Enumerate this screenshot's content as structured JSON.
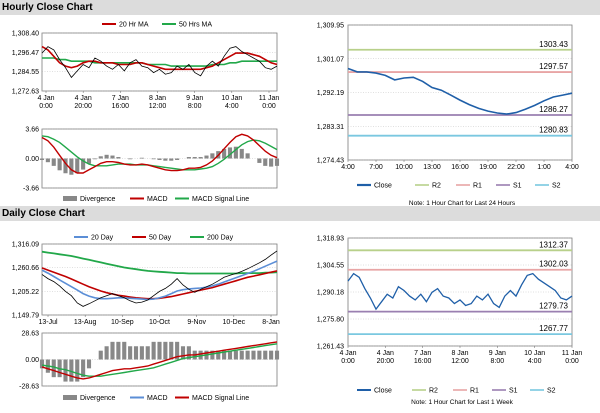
{
  "hourly": {
    "title": "Hourly Close Chart",
    "price_chart": {
      "type": "line",
      "legend": [
        "20 Hr MA",
        "50 Hrs MA"
      ],
      "y_ticks": [
        "1,308.40",
        "1,296.47",
        "1,284.55",
        "1,272.63"
      ],
      "ylim": [
        1272.63,
        1308.4
      ],
      "x_ticks": [
        [
          "4 Jan",
          "0:00"
        ],
        [
          "4 Jan",
          "20:00"
        ],
        [
          "7 Jan",
          "16:00"
        ],
        [
          "8 Jan",
          "12:00"
        ],
        [
          "9 Jan",
          "8:00"
        ],
        [
          "10 Jan",
          "4:00"
        ],
        [
          "11 Jan",
          "0:00"
        ]
      ],
      "series": [
        {
          "name": "Price",
          "values": [
            1296,
            1300,
            1298,
            1292,
            1287,
            1281,
            1285,
            1289,
            1287,
            1293,
            1291,
            1288,
            1286,
            1289,
            1285,
            1290,
            1292,
            1288,
            1287,
            1284,
            1286,
            1283,
            1284,
            1288,
            1286,
            1289,
            1284,
            1282,
            1288,
            1291,
            1288,
            1294,
            1299,
            1300,
            1297,
            1295,
            1293,
            1291,
            1287,
            1286,
            1288
          ]
        },
        {
          "name": "20 Hr MA",
          "values": [
            1300,
            1298,
            1294,
            1290,
            1288,
            1287,
            1288,
            1290,
            1291,
            1291,
            1290,
            1290,
            1290,
            1289,
            1289,
            1289,
            1290,
            1290,
            1289,
            1288,
            1287,
            1286,
            1286,
            1286,
            1286,
            1286,
            1286,
            1286,
            1287,
            1288,
            1290,
            1292,
            1294,
            1296,
            1296,
            1296,
            1295,
            1294,
            1292,
            1290,
            1289
          ]
        },
        {
          "name": "50 Hrs MA",
          "values": [
            1293,
            1293,
            1293,
            1292,
            1292,
            1291,
            1291,
            1291,
            1291,
            1290,
            1290,
            1290,
            1290,
            1290,
            1290,
            1290,
            1290,
            1290,
            1289,
            1289,
            1289,
            1289,
            1288,
            1288,
            1288,
            1288,
            1288,
            1288,
            1288,
            1289,
            1289,
            1289,
            1290,
            1290,
            1291,
            1291,
            1291,
            1291,
            1291,
            1291,
            1291
          ]
        }
      ]
    },
    "macd_chart": {
      "type": "line",
      "y_ticks": [
        "3.66",
        "0.00",
        "-3.66"
      ],
      "ylim": [
        -3.66,
        3.66
      ],
      "legend": [
        "Divergence",
        "MACD",
        "MACD Signal Line"
      ],
      "series": [
        {
          "name": "MACD",
          "values": [
            2.6,
            2.2,
            1.4,
            0.4,
            -0.6,
            -1.4,
            -1.8,
            -1.8,
            -1.4,
            -1.0,
            -0.6,
            -0.4,
            -0.4,
            -0.5,
            -0.7,
            -0.8,
            -0.8,
            -0.7,
            -0.8,
            -1.0,
            -1.2,
            -1.4,
            -1.5,
            -1.5,
            -1.4,
            -1.2,
            -1.2,
            -1.1,
            -0.8,
            -0.3,
            0.4,
            1.2,
            2.0,
            2.7,
            3.0,
            2.8,
            2.3,
            1.6,
            0.9,
            0.4,
            0.1
          ]
        },
        {
          "name": "MACD Signal Line",
          "values": [
            2.8,
            2.7,
            2.4,
            2.0,
            1.4,
            0.8,
            0.2,
            -0.3,
            -0.7,
            -0.9,
            -0.9,
            -0.9,
            -0.8,
            -0.7,
            -0.7,
            -0.7,
            -0.8,
            -0.8,
            -0.8,
            -0.9,
            -1.0,
            -1.1,
            -1.2,
            -1.3,
            -1.4,
            -1.4,
            -1.4,
            -1.3,
            -1.2,
            -1.0,
            -0.6,
            -0.1,
            0.5,
            1.1,
            1.7,
            2.1,
            2.3,
            2.2,
            1.9,
            1.5,
            1.1
          ]
        }
      ]
    },
    "intraday": {
      "type": "line",
      "y_ticks": [
        "1,309.95",
        "1,301.07",
        "1,292.19",
        "1,283.31",
        "1,274.43"
      ],
      "ylim": [
        1274.43,
        1309.95
      ],
      "x_ticks": [
        "4:00",
        "7:00",
        "10:00",
        "13:00",
        "16:00",
        "19:00",
        "22:00",
        "1:00",
        "4:00"
      ],
      "close": [
        1298.5,
        1297.6,
        1297.6,
        1297.3,
        1296.7,
        1295.5,
        1296.0,
        1296.2,
        1295.1,
        1293.5,
        1292.8,
        1291.5,
        1290.2,
        1289.0,
        1288.0,
        1287.3,
        1286.8,
        1286.5,
        1286.9,
        1287.8,
        1288.8,
        1290.0,
        1291.0,
        1291.5,
        1292.0
      ],
      "levels": [
        {
          "name": "R2",
          "value": 1303.43,
          "label": "1303.43",
          "color": "#b8d08a"
        },
        {
          "name": "R1",
          "value": 1297.57,
          "label": "1297.57",
          "color": "#e8a5a5"
        },
        {
          "name": "S1",
          "value": 1286.27,
          "label": "1286.27",
          "color": "#9a7fb0"
        },
        {
          "name": "S2",
          "value": 1280.83,
          "label": "1280.83",
          "color": "#7ac8e0"
        }
      ],
      "legend": [
        "Close",
        "R2",
        "R1",
        "S1",
        "S2"
      ],
      "note": "Note: 1 Hour Chart for Last 24 Hours"
    }
  },
  "daily": {
    "title": "Daily Close Chart",
    "price_chart": {
      "type": "line",
      "legend": [
        "20 Day",
        "50 Day",
        "200 Day"
      ],
      "y_ticks": [
        "1,316.09",
        "1,260.66",
        "1,205.22",
        "1,149.79"
      ],
      "ylim": [
        1149.79,
        1316.09
      ],
      "x_ticks": [
        "13-Jul",
        "13-Aug",
        "10-Sep",
        "10-Oct",
        "9-Nov",
        "10-Dec",
        "8-Jan"
      ],
      "series": [
        {
          "name": "Price",
          "values": [
            1245,
            1235,
            1228,
            1218,
            1205,
            1195,
            1178,
            1170,
            1176,
            1183,
            1190,
            1195,
            1200,
            1195,
            1190,
            1183,
            1178,
            1180,
            1185,
            1195,
            1205,
            1212,
            1222,
            1235,
            1220,
            1210,
            1203,
            1210,
            1216,
            1222,
            1230,
            1238,
            1243,
            1247,
            1252,
            1258,
            1265,
            1272,
            1280,
            1290,
            1300
          ]
        },
        {
          "name": "20 Day",
          "values": [
            1255,
            1248,
            1240,
            1232,
            1224,
            1216,
            1208,
            1200,
            1194,
            1190,
            1188,
            1188,
            1189,
            1190,
            1190,
            1189,
            1188,
            1187,
            1186,
            1187,
            1190,
            1194,
            1200,
            1206,
            1209,
            1211,
            1212,
            1213,
            1215,
            1218,
            1222,
            1227,
            1232,
            1237,
            1242,
            1247,
            1252,
            1258,
            1264,
            1270,
            1276
          ]
        },
        {
          "name": "50 Day",
          "values": [
            1260,
            1255,
            1250,
            1245,
            1240,
            1234,
            1228,
            1222,
            1216,
            1211,
            1206,
            1202,
            1199,
            1196,
            1194,
            1192,
            1190,
            1189,
            1188,
            1188,
            1189,
            1191,
            1193,
            1196,
            1199,
            1202,
            1205,
            1208,
            1211,
            1214,
            1218,
            1222,
            1226,
            1230,
            1234,
            1238,
            1241,
            1244,
            1247,
            1250,
            1253
          ]
        },
        {
          "name": "200 Day",
          "values": [
            1298,
            1296,
            1294,
            1292,
            1290,
            1288,
            1285,
            1282,
            1279,
            1276,
            1273,
            1270,
            1267,
            1264,
            1261,
            1259,
            1257,
            1255,
            1253,
            1252,
            1251,
            1250,
            1249,
            1248,
            1248,
            1247,
            1247,
            1247,
            1247,
            1247,
            1247,
            1247,
            1247,
            1247,
            1248,
            1248,
            1248,
            1248,
            1249,
            1249,
            1250
          ]
        }
      ]
    },
    "macd_chart": {
      "type": "line",
      "y_ticks": [
        "28.63",
        "0.00",
        "-28.63"
      ],
      "ylim": [
        -28.63,
        28.63
      ],
      "legend": [
        "Divergence",
        "MACD",
        "MACD Signal Line"
      ],
      "series": [
        {
          "name": "MACD",
          "values": [
            -8,
            -10,
            -12,
            -14,
            -16,
            -18,
            -20,
            -21,
            -20,
            -18,
            -16,
            -14,
            -12,
            -11,
            -10,
            -10,
            -9,
            -8,
            -7,
            -5,
            -3,
            -1,
            1,
            3,
            4,
            5,
            5,
            6,
            7,
            8,
            9,
            10,
            11,
            12,
            13,
            14,
            15,
            16,
            17,
            18,
            19
          ]
        },
        {
          "name": "MACD Signal Line",
          "values": [
            -6,
            -7,
            -8,
            -10,
            -11,
            -13,
            -15,
            -17,
            -18,
            -18,
            -18,
            -17,
            -16,
            -15,
            -14,
            -13,
            -12,
            -11,
            -10,
            -9,
            -7,
            -5,
            -3,
            -1,
            1,
            2,
            3,
            4,
            5,
            6,
            7,
            8,
            9,
            10,
            11,
            12,
            13,
            14,
            15,
            16,
            17
          ]
        }
      ]
    },
    "weekly": {
      "type": "line",
      "y_ticks": [
        "1,318.93",
        "1,304.55",
        "1,290.18",
        "1,275.80",
        "1,261.43"
      ],
      "ylim": [
        1261.43,
        1318.93
      ],
      "x_ticks": [
        [
          "4 Jan",
          "0:00"
        ],
        [
          "4 Jan",
          "20:00"
        ],
        [
          "7 Jan",
          "16:00"
        ],
        [
          "8 Jan",
          "12:00"
        ],
        [
          "9 Jan",
          "8:00"
        ],
        [
          "10 Jan",
          "4:00"
        ],
        [
          "11 Jan",
          "0:00"
        ]
      ],
      "close": [
        1296,
        1300,
        1298,
        1292,
        1287,
        1281,
        1285,
        1289,
        1287,
        1293,
        1291,
        1288,
        1286,
        1289,
        1285,
        1290,
        1292,
        1288,
        1287,
        1284,
        1286,
        1283,
        1284,
        1288,
        1286,
        1289,
        1284,
        1282,
        1288,
        1291,
        1288,
        1294,
        1299,
        1300,
        1297,
        1295,
        1293,
        1291,
        1287,
        1286,
        1288
      ],
      "levels": [
        {
          "name": "R2",
          "value": 1312.37,
          "label": "1312.37",
          "color": "#b8d08a"
        },
        {
          "name": "R1",
          "value": 1302.03,
          "label": "1302.03",
          "color": "#e8a5a5"
        },
        {
          "name": "S1",
          "value": 1279.73,
          "label": "1279.73",
          "color": "#9a7fb0"
        },
        {
          "name": "S2",
          "value": 1267.77,
          "label": "1267.77",
          "color": "#7ac8e0"
        }
      ],
      "legend": [
        "Close",
        "R2",
        "R1",
        "S1",
        "S2"
      ],
      "note": "Note: 1 Hour Chart for Last 1 Week"
    }
  },
  "colors": {
    "price": "#000000",
    "ma_red": "#c00000",
    "ma_green": "#22a84a",
    "ma_blue": "#5b8ed6",
    "close": "#1f5fa8",
    "divergence": "#888888",
    "grid": "#b0b0b0"
  }
}
